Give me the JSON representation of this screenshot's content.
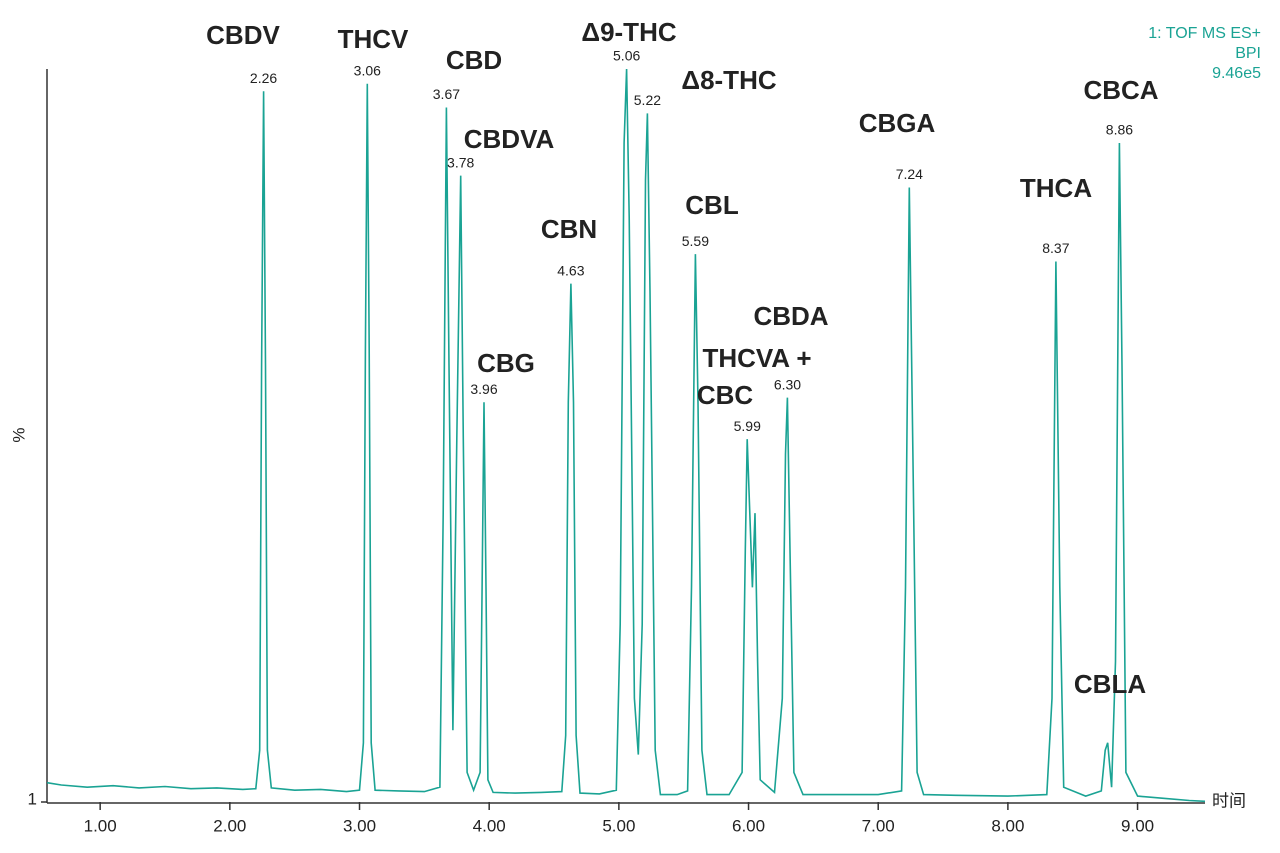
{
  "chart_data": {
    "type": "line",
    "info": [
      "1: TOF MS ES+",
      "BPI",
      "9.46e5"
    ],
    "y_label": "%",
    "x_label": "时间",
    "xlim": [
      0.59,
      9.52
    ],
    "xticks": [
      {
        "value": 1,
        "label": "1.00"
      },
      {
        "value": 2,
        "label": "2.00"
      },
      {
        "value": 3,
        "label": "3.00"
      },
      {
        "value": 4,
        "label": "4.00"
      },
      {
        "value": 5,
        "label": "5.00"
      },
      {
        "value": 6,
        "label": "6.00"
      },
      {
        "value": 7,
        "label": "7.00"
      },
      {
        "value": 8,
        "label": "8.00"
      },
      {
        "value": 9,
        "label": "9.00"
      }
    ],
    "ylim": [
      1,
      100
    ],
    "yticks": [
      1
    ],
    "series": [
      {
        "name": "BPI",
        "color": "#1aa394",
        "x": [
          0.59,
          0.7,
          0.9,
          1.1,
          1.3,
          1.5,
          1.7,
          1.9,
          2.1,
          2.2,
          2.23,
          2.245,
          2.26,
          2.275,
          2.29,
          2.32,
          2.5,
          2.7,
          2.9,
          3.0,
          3.03,
          3.045,
          3.06,
          3.075,
          3.09,
          3.12,
          3.3,
          3.5,
          3.62,
          3.645,
          3.67,
          3.69,
          3.72,
          3.75,
          3.78,
          3.8,
          3.83,
          3.88,
          3.93,
          3.945,
          3.96,
          3.975,
          3.99,
          4.03,
          4.2,
          4.4,
          4.56,
          4.59,
          4.61,
          4.63,
          4.65,
          4.67,
          4.7,
          4.85,
          4.98,
          5.01,
          5.04,
          5.06,
          5.08,
          5.12,
          5.15,
          5.18,
          5.205,
          5.22,
          5.24,
          5.28,
          5.32,
          5.45,
          5.53,
          5.56,
          5.59,
          5.61,
          5.64,
          5.68,
          5.85,
          5.95,
          5.975,
          5.99,
          6.01,
          6.03,
          6.05,
          6.07,
          6.09,
          6.2,
          6.26,
          6.285,
          6.3,
          6.32,
          6.35,
          6.42,
          6.7,
          7.0,
          7.18,
          7.21,
          7.24,
          7.27,
          7.3,
          7.35,
          7.6,
          8.0,
          8.3,
          8.34,
          8.37,
          8.4,
          8.43,
          8.6,
          8.72,
          8.75,
          8.77,
          8.8,
          8.83,
          8.86,
          8.88,
          8.91,
          9.0,
          9.2,
          9.4,
          9.52
        ],
        "values": [
          3.6,
          3.3,
          3.0,
          3.2,
          2.9,
          3.1,
          2.8,
          2.9,
          2.7,
          2.8,
          8,
          60,
          97,
          60,
          8,
          2.9,
          2.6,
          2.7,
          2.4,
          2.6,
          9,
          62,
          98,
          62,
          9,
          2.6,
          2.5,
          2.4,
          3,
          40,
          94.8,
          60,
          10.7,
          50,
          85.6,
          50,
          5,
          2.6,
          5,
          30,
          55,
          30,
          4,
          2.3,
          2.2,
          2.3,
          2.4,
          10,
          55,
          71,
          55,
          10,
          2.2,
          2.1,
          2.6,
          25,
          90,
          100,
          80,
          15,
          7.4,
          25,
          85,
          94,
          70,
          8,
          2,
          2,
          2.5,
          30,
          75,
          55,
          8,
          2,
          2,
          5,
          35,
          50,
          40,
          30,
          40,
          20,
          4,
          2.3,
          15,
          48,
          55.6,
          35,
          5,
          2,
          2,
          2,
          2.5,
          30,
          84,
          45,
          5,
          2,
          1.9,
          1.8,
          2,
          15,
          74,
          30,
          3,
          1.8,
          2.5,
          8,
          9,
          3,
          20,
          90,
          60,
          5,
          1.8,
          1.5,
          1.2,
          1.1
        ]
      }
    ],
    "peak_times": [
      2.26,
      3.06,
      3.67,
      3.78,
      3.96,
      4.63,
      5.06,
      5.22,
      5.59,
      5.99,
      6.3,
      7.24,
      8.37,
      8.86
    ],
    "peak_time_labels": [
      "2.26",
      "3.06",
      "3.67",
      "3.78",
      "3.96",
      "4.63",
      "5.06",
      "5.22",
      "5.59",
      "5.99",
      "6.30",
      "7.24",
      "8.37",
      "8.86"
    ],
    "annotations": [
      "CBDV",
      "THCV",
      "CBD",
      "CBDVA",
      "CBG",
      "CBN",
      "Δ9-THC",
      "Δ8-THC",
      "CBL",
      "THCVA +",
      "CBC",
      "CBDA",
      "CBGA",
      "THCA",
      "CBCA",
      "CBLA"
    ]
  }
}
